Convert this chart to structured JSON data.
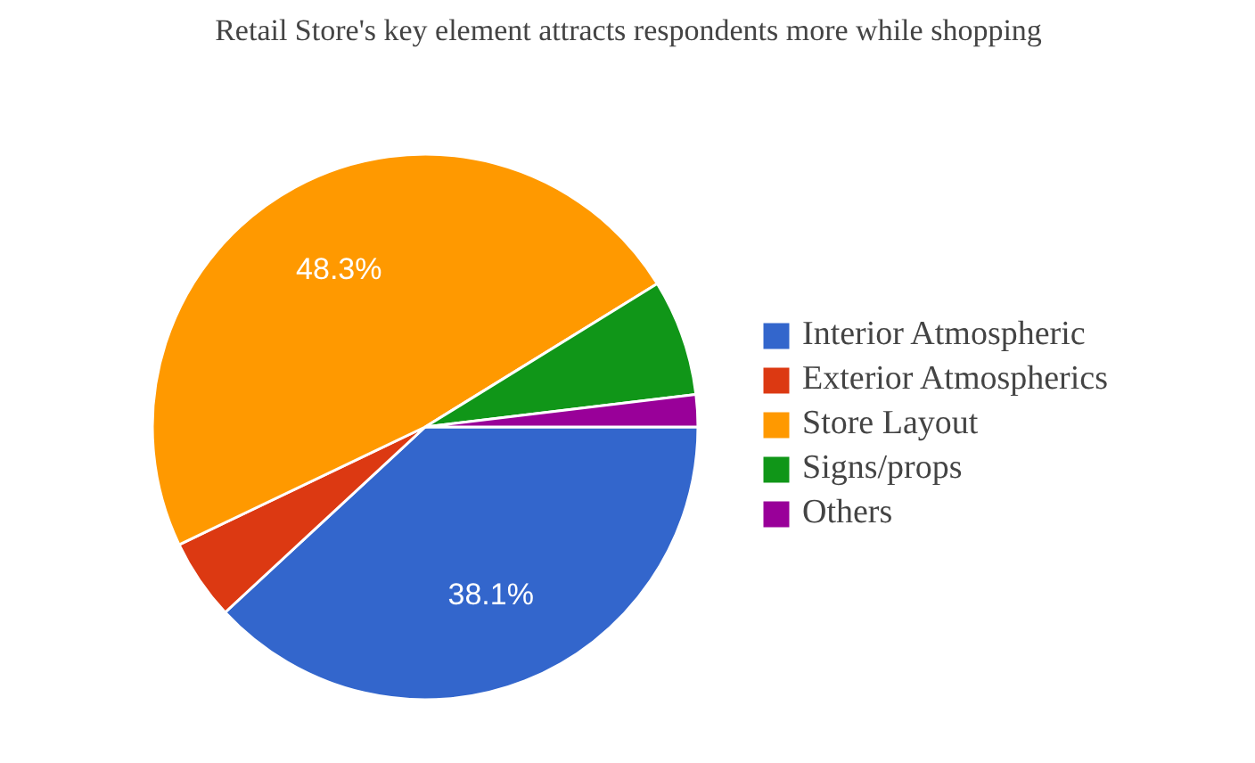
{
  "chart_data": {
    "type": "pie",
    "title": "Retail Store's key element attracts respondents more while shopping",
    "categories": [
      "Interior Atmospheric",
      "Exterior Atmospherics",
      "Store Layout",
      "Signs/props",
      "Others"
    ],
    "values": [
      38.1,
      4.8,
      48.3,
      6.9,
      1.9
    ],
    "colors": [
      "#3366cc",
      "#dc3912",
      "#ff9900",
      "#109618",
      "#990099"
    ],
    "value_labels": [
      "38.1%",
      null,
      "48.3%",
      null,
      null
    ],
    "legend": "right"
  }
}
